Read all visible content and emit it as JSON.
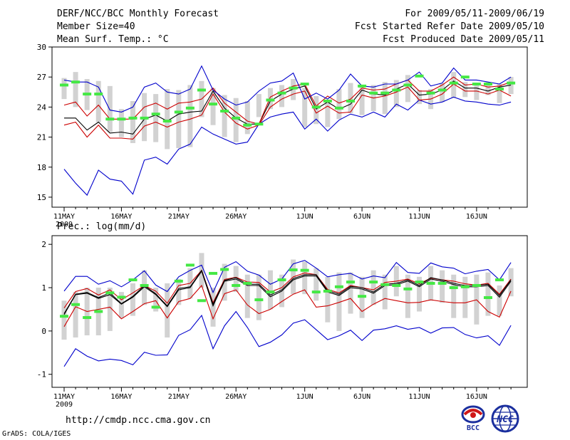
{
  "header": {
    "title": "DERF/NCC/BCC Monthly Forecast",
    "member_size": "Member Size=40",
    "variable": "Mean Surf. Temp.: °C",
    "forecast_period": "For 2009/05/11-2009/06/19",
    "fcst_started": "Fcst Started Refer Date 2009/05/10",
    "fcst_produced": "Fcst Produced Date 2009/05/11"
  },
  "footer": {
    "url": "http://cmdp.ncc.cma.gov.cn",
    "credit": "GrADS: COLA/IGES",
    "logo_bcc": "BCC",
    "logo_ncc": "NCC"
  },
  "colors": {
    "spread": "#d2d2d2",
    "envelope": "#0000cc",
    "inner": "#cc0000",
    "mean": "#000000",
    "observed": "#44e844"
  },
  "chart_data": [
    {
      "type": "line",
      "name": "temperature",
      "title": "Mean Surf. Temp.: °C",
      "x_tick_labels": [
        "11MAY",
        "16MAY",
        "21MAY",
        "26MAY",
        "1JUN",
        "6JUN",
        "11JUN",
        "16JUN"
      ],
      "x_tick_days": [
        1,
        6,
        11,
        16,
        22,
        27,
        32,
        37
      ],
      "year_label": "2009",
      "ylim": [
        14,
        30
      ],
      "y_ticks": [
        15,
        18,
        21,
        24,
        27,
        30
      ],
      "days": [
        1,
        2,
        3,
        4,
        5,
        6,
        7,
        8,
        9,
        10,
        11,
        12,
        13,
        14,
        15,
        16,
        17,
        18,
        19,
        20,
        21,
        22,
        23,
        24,
        25,
        26,
        27,
        28,
        29,
        30,
        31,
        32,
        33,
        34,
        35,
        36,
        37,
        38,
        39,
        40
      ],
      "series": [
        {
          "name": "min",
          "values": [
            17.8,
            16.4,
            15.2,
            17.7,
            16.8,
            16.6,
            15.3,
            18.7,
            19.0,
            18.3,
            19.8,
            20.3,
            22.0,
            21.3,
            20.8,
            20.3,
            20.5,
            22.3,
            23.0,
            23.3,
            23.5,
            21.8,
            22.8,
            21.6,
            22.7,
            23.3,
            23.0,
            23.5,
            23.0,
            24.3,
            23.7,
            24.7,
            24.3,
            24.5,
            25.0,
            24.6,
            24.5,
            24.3,
            24.2,
            24.5
          ]
        },
        {
          "name": "lower",
          "values": [
            22.2,
            22.5,
            21.0,
            22.2,
            20.9,
            20.9,
            20.8,
            22.1,
            22.5,
            22.0,
            22.5,
            22.8,
            23.2,
            25.3,
            23.5,
            22.4,
            21.8,
            22.2,
            24.0,
            24.8,
            25.3,
            25.6,
            23.4,
            24.1,
            23.4,
            23.5,
            25.2,
            24.9,
            25.1,
            25.5,
            26.0,
            24.7,
            24.8,
            25.3,
            26.3,
            25.6,
            25.6,
            25.3,
            25.7,
            25.1
          ]
        },
        {
          "name": "mean",
          "values": [
            22.9,
            22.9,
            21.7,
            22.5,
            21.4,
            21.5,
            21.3,
            22.8,
            23.2,
            22.6,
            23.3,
            23.5,
            23.6,
            25.6,
            23.9,
            22.9,
            22.3,
            22.3,
            24.6,
            25.3,
            25.8,
            26.1,
            23.8,
            24.5,
            23.8,
            24.3,
            25.7,
            25.3,
            25.2,
            25.8,
            26.3,
            25.2,
            25.3,
            25.7,
            26.6,
            25.9,
            25.9,
            25.6,
            26.0,
            26.2
          ]
        },
        {
          "name": "upper",
          "values": [
            24.2,
            24.5,
            23.1,
            24.2,
            22.8,
            22.8,
            22.8,
            24.0,
            24.4,
            23.8,
            24.4,
            24.5,
            24.8,
            25.9,
            24.4,
            23.5,
            22.6,
            22.3,
            25.0,
            25.6,
            26.1,
            26.3,
            24.1,
            25.1,
            24.4,
            24.8,
            25.9,
            25.7,
            25.8,
            26.3,
            26.7,
            25.6,
            25.6,
            26.2,
            27.0,
            26.2,
            26.3,
            26.0,
            26.1,
            26.5
          ]
        },
        {
          "name": "max",
          "values": [
            26.7,
            26.5,
            26.5,
            26.0,
            23.7,
            23.5,
            24.0,
            26.0,
            26.4,
            25.5,
            25.3,
            25.8,
            28.1,
            25.7,
            24.8,
            24.2,
            24.5,
            25.6,
            26.4,
            26.6,
            27.4,
            24.8,
            25.4,
            24.8,
            25.7,
            27.3,
            26.1,
            26.0,
            26.3,
            26.3,
            26.7,
            27.5,
            26.1,
            26.4,
            27.9,
            26.7,
            26.7,
            26.5,
            26.3,
            27.0
          ]
        }
      ],
      "bars": [
        [
          24.8,
          26.9
        ],
        [
          24.0,
          27.5
        ],
        [
          23.7,
          26.8
        ],
        [
          22.5,
          26.6
        ],
        [
          21.5,
          26.1
        ],
        [
          21.0,
          23.8
        ],
        [
          20.4,
          24.6
        ],
        [
          20.6,
          25.4
        ],
        [
          20.5,
          25.3
        ],
        [
          19.8,
          25.8
        ],
        [
          19.9,
          25.7
        ],
        [
          20.0,
          26.2
        ],
        [
          23.0,
          26.6
        ],
        [
          22.2,
          25.9
        ],
        [
          21.0,
          25.2
        ],
        [
          20.5,
          24.9
        ],
        [
          21.3,
          24.6
        ],
        [
          23.0,
          25.3
        ],
        [
          23.8,
          25.9
        ],
        [
          24.0,
          26.2
        ],
        [
          24.7,
          26.8
        ],
        [
          22.0,
          25.9
        ],
        [
          22.3,
          25.1
        ],
        [
          22.0,
          24.7
        ],
        [
          22.8,
          25.8
        ],
        [
          23.4,
          26.4
        ],
        [
          23.2,
          26.2
        ],
        [
          23.6,
          26.2
        ],
        [
          23.3,
          26.5
        ],
        [
          24.0,
          26.7
        ],
        [
          24.5,
          27.2
        ],
        [
          24.3,
          25.7
        ],
        [
          23.8,
          25.8
        ],
        [
          24.5,
          26.4
        ],
        [
          24.9,
          27.5
        ],
        [
          25.0,
          26.5
        ],
        [
          24.7,
          26.4
        ],
        [
          25.2,
          26.5
        ],
        [
          24.4,
          26.3
        ],
        [
          25.3,
          27.0
        ]
      ],
      "observed": [
        26.2,
        26.5,
        25.3,
        25.3,
        22.8,
        22.8,
        22.9,
        22.9,
        23.3,
        22.6,
        23.5,
        23.9,
        25.7,
        24.3,
        23.6,
        22.9,
        22.2,
        22.3,
        24.7,
        25.4,
        25.9,
        26.3,
        24.0,
        24.6,
        23.9,
        24.6,
        26.1,
        25.4,
        25.4,
        25.7,
        26.2,
        27.1,
        25.4,
        25.7,
        26.4,
        27.0,
        26.3,
        26.3,
        25.8,
        26.4
      ]
    },
    {
      "type": "line",
      "name": "precipitation",
      "title": "Prec.: log(mm/d)",
      "x_tick_labels": [
        "11MAY",
        "16MAY",
        "21MAY",
        "26MAY",
        "1JUN",
        "6JUN",
        "11JUN",
        "16JUN"
      ],
      "x_tick_days": [
        1,
        6,
        11,
        16,
        22,
        27,
        32,
        37
      ],
      "year_label": "2009",
      "ylim": [
        -1.3,
        2.2
      ],
      "y_ticks": [
        -1,
        0,
        1,
        2
      ],
      "days": [
        1,
        2,
        3,
        4,
        5,
        6,
        7,
        8,
        9,
        10,
        11,
        12,
        13,
        14,
        15,
        16,
        17,
        18,
        19,
        20,
        21,
        22,
        23,
        24,
        25,
        26,
        27,
        28,
        29,
        30,
        31,
        32,
        33,
        34,
        35,
        36,
        37,
        38,
        39,
        40
      ],
      "series": [
        {
          "name": "min",
          "values": [
            -0.82,
            -0.41,
            -0.58,
            -0.69,
            -0.65,
            -0.68,
            -0.78,
            -0.49,
            -0.56,
            -0.55,
            -0.1,
            0.03,
            0.36,
            -0.41,
            0.12,
            0.45,
            0.08,
            -0.36,
            -0.26,
            -0.09,
            0.18,
            0.26,
            0.03,
            -0.2,
            -0.11,
            0.02,
            -0.22,
            0.02,
            0.05,
            0.12,
            0.04,
            0.08,
            -0.05,
            0.07,
            0.08,
            -0.08,
            -0.16,
            -0.11,
            -0.33,
            0.13
          ]
        },
        {
          "name": "lower",
          "values": [
            0.1,
            0.56,
            0.45,
            0.5,
            0.55,
            0.28,
            0.45,
            0.63,
            0.7,
            0.3,
            0.68,
            0.75,
            1.05,
            0.28,
            0.86,
            0.95,
            0.6,
            0.4,
            0.5,
            0.68,
            0.85,
            0.95,
            0.55,
            0.58,
            0.66,
            0.75,
            0.45,
            0.62,
            0.75,
            0.7,
            0.65,
            0.66,
            0.72,
            0.68,
            0.65,
            0.65,
            0.72,
            0.45,
            0.32,
            0.92
          ]
        },
        {
          "name": "mean",
          "values": [
            0.38,
            0.84,
            0.87,
            0.75,
            0.84,
            0.62,
            0.78,
            1.02,
            0.84,
            0.56,
            0.95,
            1.0,
            1.38,
            0.58,
            1.15,
            1.2,
            1.05,
            1.05,
            0.79,
            0.92,
            1.18,
            1.27,
            1.27,
            0.9,
            0.82,
            1.0,
            0.97,
            0.87,
            1.05,
            1.07,
            1.15,
            1.02,
            1.2,
            1.15,
            1.07,
            1.02,
            1.02,
            1.05,
            0.78,
            1.15
          ]
        },
        {
          "name": "upper",
          "values": [
            0.53,
            0.91,
            0.98,
            0.83,
            0.95,
            0.72,
            0.88,
            1.05,
            0.92,
            0.64,
            1.05,
            1.1,
            1.4,
            0.65,
            1.19,
            1.24,
            1.13,
            1.12,
            0.9,
            1.0,
            1.25,
            1.34,
            1.3,
            0.96,
            0.88,
            1.05,
            1.0,
            0.95,
            1.12,
            1.15,
            1.2,
            1.09,
            1.22,
            1.18,
            1.15,
            1.09,
            1.06,
            1.1,
            0.85,
            1.2
          ]
        },
        {
          "name": "max",
          "values": [
            0.92,
            1.26,
            1.26,
            1.08,
            1.16,
            1.02,
            1.18,
            1.39,
            1.06,
            0.91,
            1.25,
            1.4,
            1.52,
            0.89,
            1.47,
            1.6,
            1.38,
            1.29,
            1.08,
            1.2,
            1.55,
            1.63,
            1.45,
            1.25,
            1.3,
            1.33,
            1.2,
            1.27,
            1.23,
            1.58,
            1.35,
            1.33,
            1.57,
            1.48,
            1.45,
            1.32,
            1.38,
            1.42,
            1.18,
            1.58
          ]
        },
        {
          "name": "observed_line",
          "values": [
            0.4,
            0.85,
            0.89,
            0.77,
            0.88,
            0.63,
            0.8,
            1.05,
            0.86,
            0.58,
            0.98,
            1.02,
            1.4,
            0.62,
            1.17,
            1.23,
            1.08,
            1.08,
            0.83,
            0.95,
            1.21,
            1.3,
            1.3,
            0.93,
            0.85,
            1.03,
            1.0,
            0.9,
            1.08,
            1.1,
            1.18,
            1.05,
            1.23,
            1.18,
            1.1,
            1.05,
            1.05,
            1.08,
            0.82,
            1.18
          ]
        }
      ],
      "bars": [
        [
          -0.2,
          0.7
        ],
        [
          -0.15,
          0.9
        ],
        [
          -0.1,
          1.0
        ],
        [
          -0.1,
          1.0
        ],
        [
          0.0,
          1.0
        ],
        [
          0.3,
          0.9
        ],
        [
          0.35,
          1.1
        ],
        [
          0.6,
          1.4
        ],
        [
          0.45,
          1.0
        ],
        [
          -0.15,
          1.1
        ],
        [
          0.6,
          1.2
        ],
        [
          0.75,
          1.45
        ],
        [
          1.0,
          1.8
        ],
        [
          0.1,
          1.0
        ],
        [
          0.7,
          1.55
        ],
        [
          0.9,
          1.5
        ],
        [
          0.3,
          1.3
        ],
        [
          0.25,
          1.3
        ],
        [
          0.5,
          1.4
        ],
        [
          0.55,
          1.3
        ],
        [
          0.85,
          1.65
        ],
        [
          0.85,
          1.6
        ],
        [
          0.7,
          1.45
        ],
        [
          0.2,
          1.25
        ],
        [
          0.0,
          1.35
        ],
        [
          0.4,
          1.35
        ],
        [
          0.3,
          1.25
        ],
        [
          0.6,
          1.4
        ],
        [
          0.5,
          1.3
        ],
        [
          0.8,
          1.5
        ],
        [
          0.3,
          1.3
        ],
        [
          0.45,
          1.25
        ],
        [
          0.7,
          1.5
        ],
        [
          0.65,
          1.4
        ],
        [
          0.3,
          1.3
        ],
        [
          0.3,
          1.25
        ],
        [
          0.15,
          1.3
        ],
        [
          0.35,
          1.35
        ],
        [
          0.35,
          1.05
        ],
        [
          0.8,
          1.45
        ]
      ],
      "observed": [
        0.34,
        0.61,
        0.31,
        0.45,
        0.88,
        0.78,
        1.18,
        1.05,
        0.55,
        null,
        1.15,
        1.52,
        0.7,
        1.33,
        1.42,
        1.05,
        1.1,
        0.72,
        0.9,
        1.18,
        1.41,
        1.4,
        0.9,
        0.92,
        1.02,
        1.13,
        0.8,
        1.13,
        1.07,
        1.05,
        0.97,
        1.13,
        1.1,
        1.1,
        1.0,
        1.02,
        1.05,
        0.77,
        1.18,
        null
      ]
    }
  ]
}
